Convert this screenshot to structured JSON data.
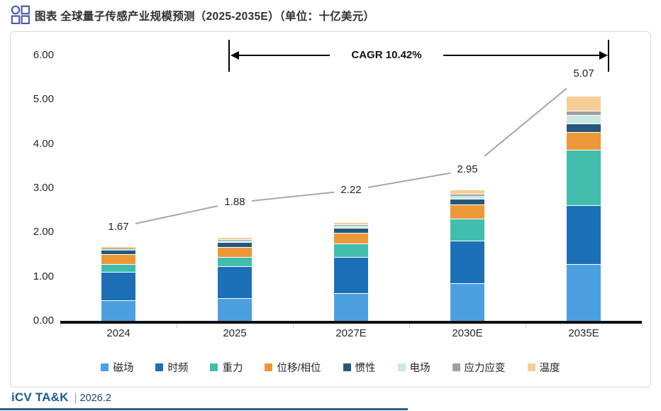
{
  "header": {
    "title": "图表 全球量子传感产业规模预测（2025-2035E）（单位：十亿美元）"
  },
  "footer": {
    "brand": "iCV TA&K",
    "separator": "|",
    "date": "2026.2"
  },
  "chart_data": {
    "type": "bar",
    "stacked": true,
    "title": "全球量子传感产业规模预测（2025-2035E）",
    "unit": "十亿美元",
    "categories": [
      "2024",
      "2025",
      "2027E",
      "2030E",
      "2035E"
    ],
    "totals": [
      1.67,
      1.88,
      2.22,
      2.95,
      5.07
    ],
    "series": [
      {
        "name": "磁场",
        "color": "#4DA0E0",
        "values": [
          0.45,
          0.5,
          0.61,
          0.83,
          1.27
        ]
      },
      {
        "name": "时频",
        "color": "#1C70B7",
        "values": [
          0.64,
          0.72,
          0.82,
          0.97,
          1.33
        ]
      },
      {
        "name": "重力",
        "color": "#41BDAE",
        "values": [
          0.18,
          0.21,
          0.3,
          0.5,
          1.25
        ]
      },
      {
        "name": "位移/相位",
        "color": "#EC9838",
        "values": [
          0.22,
          0.23,
          0.24,
          0.31,
          0.4
        ]
      },
      {
        "name": "惯性",
        "color": "#25587B",
        "values": [
          0.1,
          0.11,
          0.12,
          0.13,
          0.19
        ]
      },
      {
        "name": "电场",
        "color": "#CCE8E4",
        "values": [
          0.04,
          0.05,
          0.06,
          0.09,
          0.2
        ]
      },
      {
        "name": "应力应变",
        "color": "#A0A0A0",
        "values": [
          0.01,
          0.01,
          0.02,
          0.03,
          0.1
        ]
      },
      {
        "name": "温度",
        "color": "#F7CE96",
        "values": [
          0.03,
          0.05,
          0.05,
          0.09,
          0.33
        ]
      }
    ],
    "annotation": {
      "cagr_label": "CAGR 10.42%"
    },
    "y_axis": {
      "min": 0,
      "max": 6,
      "step": 1,
      "tick_labels": [
        "0.00",
        "1.00",
        "2.00",
        "3.00",
        "4.00",
        "5.00",
        "6.00"
      ]
    },
    "legend_position": "bottom",
    "grid": false
  }
}
